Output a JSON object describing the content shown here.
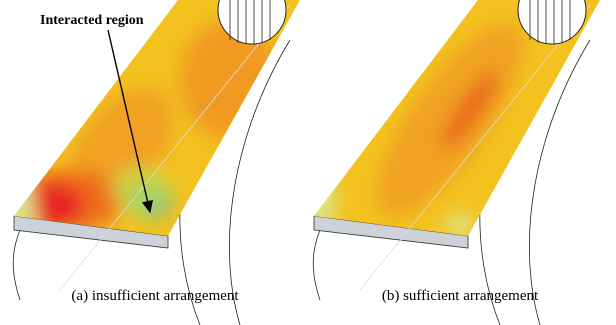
{
  "panels": [
    {
      "caption": "(a) insufficient arrangement",
      "annotation": "Interacted region"
    },
    {
      "caption": "(b) sufficient arrangement"
    }
  ]
}
